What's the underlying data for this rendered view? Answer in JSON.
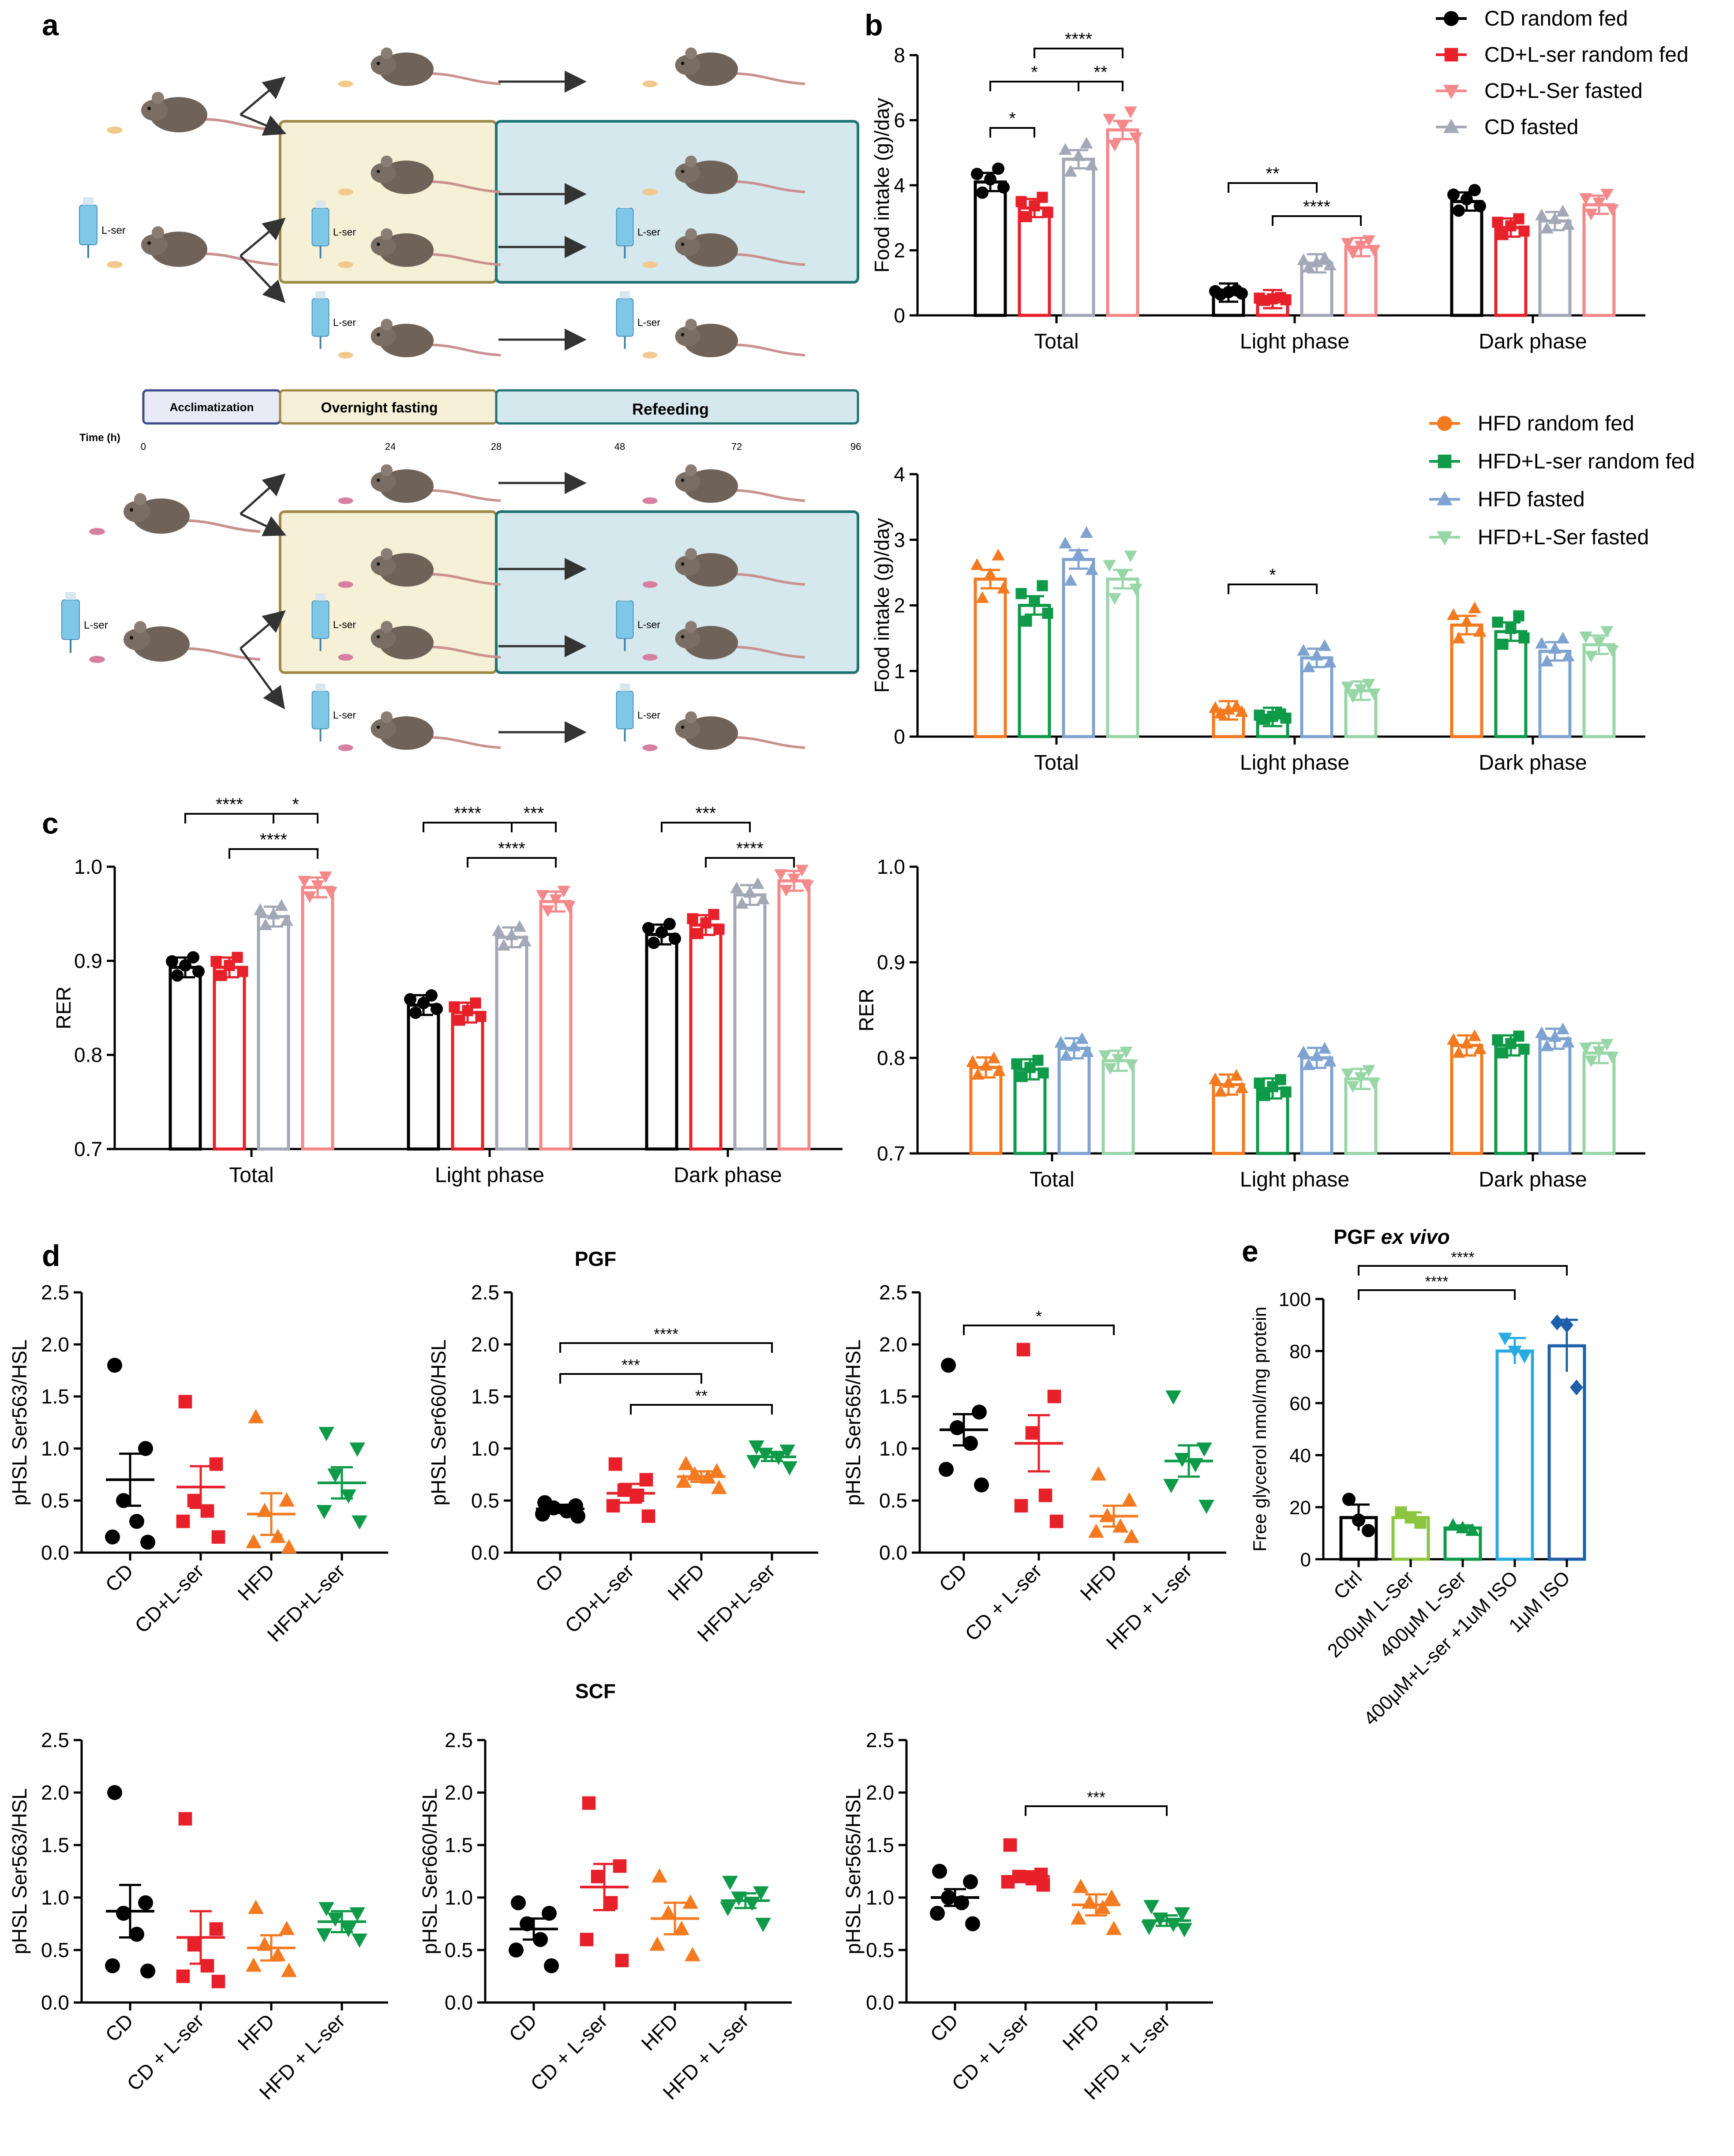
{
  "panels": {
    "a": "a",
    "b": "b",
    "c": "c",
    "d": "d",
    "e": "e"
  },
  "schematic": {
    "lser": "L-ser",
    "phases": [
      "Acclimatization",
      "Overnight fasting",
      "Refeeding"
    ],
    "time_label": "Time (h)",
    "time_ticks": [
      "0",
      "24",
      "28",
      "48",
      "72",
      "96"
    ]
  },
  "titles": {
    "pgf": "PGF",
    "scf": "SCF",
    "e_prefix": "PGF ",
    "e_italic": "ex vivo"
  },
  "colors": {
    "cd": "#000000",
    "cdlser": "#E8202A",
    "cdlserfasted": "#F4888A",
    "cdfasted": "#A3A8B7",
    "hfd": "#F47A20",
    "hfdlser": "#0E9A48",
    "hfdfasted": "#7FA3D1",
    "hfdlserfasted": "#98D6A8",
    "e_ctrl": "#000000",
    "e_200": "#8CC63F",
    "e_400": "#0E9A48",
    "e_400iso": "#29ABE2",
    "e_iso": "#1F5FA9"
  },
  "legends": {
    "b_cd": [
      "CD random fed",
      "CD+L-ser random fed",
      "CD+L-Ser fasted",
      "CD fasted"
    ],
    "b_hfd": [
      "HFD random fed",
      "HFD+L-ser random fed",
      "HFD fasted",
      "HFD+L-Ser fasted"
    ]
  },
  "chart_data": [
    {
      "id": "b_top",
      "type": "bar",
      "ylabel": "Food intake (g)/day",
      "ylim": [
        0,
        8
      ],
      "yticks": [
        "0",
        "2",
        "4",
        "6",
        "8"
      ],
      "categories": [
        "Total",
        "Light phase",
        "Dark phase"
      ],
      "series": [
        {
          "name": "CD random fed",
          "values": [
            4.1,
            0.7,
            3.5
          ]
        },
        {
          "name": "CD+L-ser random fed",
          "values": [
            3.3,
            0.5,
            2.7
          ]
        },
        {
          "name": "CD fasted",
          "values": [
            4.8,
            1.6,
            2.9
          ]
        },
        {
          "name": "CD+L-Ser fasted",
          "values": [
            5.7,
            2.1,
            3.4
          ]
        }
      ],
      "sig": [
        "*",
        "*",
        "****",
        "**",
        "**",
        "****"
      ]
    },
    {
      "id": "b_bottom",
      "type": "bar",
      "ylabel": "Food intake (g)/day",
      "ylim": [
        0,
        4
      ],
      "yticks": [
        "0",
        "1",
        "2",
        "3",
        "4"
      ],
      "categories": [
        "Total",
        "Light phase",
        "Dark phase"
      ],
      "series": [
        {
          "name": "HFD random fed",
          "values": [
            2.4,
            0.4,
            1.7
          ]
        },
        {
          "name": "HFD+L-ser random fed",
          "values": [
            2.0,
            0.3,
            1.6
          ]
        },
        {
          "name": "HFD fasted",
          "values": [
            2.7,
            1.2,
            1.3
          ]
        },
        {
          "name": "HFD+L-Ser fasted",
          "values": [
            2.4,
            0.7,
            1.4
          ]
        }
      ],
      "sig": [
        "*"
      ]
    },
    {
      "id": "c_left",
      "type": "bar",
      "ylabel": "RER",
      "ylim": [
        0.7,
        1.0
      ],
      "yticks": [
        "0.7",
        "0.8",
        "0.9",
        "1.0"
      ],
      "categories": [
        "Total",
        "Light phase",
        "Dark phase"
      ],
      "series": [
        {
          "name": "CD random fed",
          "values": [
            0.893,
            0.853,
            0.928
          ]
        },
        {
          "name": "CD+L-ser random fed",
          "values": [
            0.893,
            0.845,
            0.938
          ]
        },
        {
          "name": "CD fasted",
          "values": [
            0.947,
            0.925,
            0.97
          ]
        },
        {
          "name": "CD+L-Ser fasted",
          "values": [
            0.978,
            0.963,
            0.985
          ]
        }
      ],
      "sig": [
        "****",
        "*",
        "****",
        "****",
        "***",
        "****",
        "***",
        "****"
      ]
    },
    {
      "id": "c_right",
      "type": "bar",
      "ylabel": "RER",
      "ylim": [
        0.7,
        1.0
      ],
      "yticks": [
        "0.7",
        "0.8",
        "0.9",
        "1.0"
      ],
      "categories": [
        "Total",
        "Light phase",
        "Dark phase"
      ],
      "series": [
        {
          "name": "HFD random fed",
          "values": [
            0.79,
            0.772,
            0.813
          ]
        },
        {
          "name": "HFD+L-ser random fed",
          "values": [
            0.788,
            0.768,
            0.813
          ]
        },
        {
          "name": "HFD fasted",
          "values": [
            0.81,
            0.8,
            0.82
          ]
        },
        {
          "name": "HFD+L-Ser fasted",
          "values": [
            0.797,
            0.778,
            0.805
          ]
        }
      ],
      "sig": []
    },
    {
      "id": "d_pgf_563",
      "type": "scatter",
      "ylabel": "pHSL Ser563/HSL",
      "ylim": [
        0,
        2.5
      ],
      "yticks": [
        "0.0",
        "0.5",
        "1.0",
        "1.5",
        "2.0",
        "2.5"
      ],
      "categories": [
        "CD",
        "CD+L-ser",
        "HFD",
        "HFD+L-ser"
      ],
      "means": [
        0.7,
        0.63,
        0.37,
        0.67
      ],
      "sem": [
        0.25,
        0.2,
        0.2,
        0.15
      ],
      "points": [
        [
          1.8,
          1.0,
          0.5,
          0.3,
          0.15,
          0.1
        ],
        [
          1.45,
          0.85,
          0.5,
          0.4,
          0.3,
          0.15
        ],
        [
          1.3,
          0.5,
          0.4,
          0.15,
          0.1,
          0.05
        ],
        [
          1.15,
          1.0,
          0.75,
          0.55,
          0.4,
          0.3
        ]
      ],
      "sig": []
    },
    {
      "id": "d_pgf_660",
      "type": "scatter",
      "ylabel": "pHSL Ser660/HSL",
      "ylim": [
        0,
        2.5
      ],
      "yticks": [
        "0.0",
        "0.5",
        "1.0",
        "1.5",
        "2.0",
        "2.5"
      ],
      "categories": [
        "CD",
        "CD+L-ser",
        "HFD",
        "HFD+L-ser"
      ],
      "means": [
        0.42,
        0.57,
        0.73,
        0.92
      ],
      "sem": [
        0.04,
        0.09,
        0.05,
        0.04
      ],
      "points": [
        [
          0.48,
          0.45,
          0.43,
          0.4,
          0.37,
          0.35
        ],
        [
          0.85,
          0.7,
          0.6,
          0.55,
          0.45,
          0.35
        ],
        [
          0.85,
          0.78,
          0.75,
          0.72,
          0.68,
          0.62
        ],
        [
          1.02,
          0.98,
          0.95,
          0.92,
          0.88,
          0.82
        ]
      ],
      "sig": [
        "****",
        "***",
        "**"
      ]
    },
    {
      "id": "d_pgf_565",
      "type": "scatter",
      "ylabel": "pHSL Ser565/HSL",
      "ylim": [
        0,
        2.5
      ],
      "yticks": [
        "0.0",
        "0.5",
        "1.0",
        "1.5",
        "2.0",
        "2.5"
      ],
      "categories": [
        "CD",
        "CD + L-ser",
        "HFD",
        "HFD + L-ser"
      ],
      "means": [
        1.18,
        1.05,
        0.35,
        0.88
      ],
      "sem": [
        0.15,
        0.27,
        0.1,
        0.15
      ],
      "points": [
        [
          1.8,
          1.35,
          1.2,
          1.05,
          0.8,
          0.65
        ],
        [
          1.95,
          1.5,
          1.15,
          0.55,
          0.45,
          0.3
        ],
        [
          0.75,
          0.5,
          0.35,
          0.25,
          0.2,
          0.15
        ],
        [
          1.5,
          1.0,
          0.9,
          0.85,
          0.65,
          0.45
        ]
      ],
      "sig": [
        "*"
      ]
    },
    {
      "id": "d_scf_563",
      "type": "scatter",
      "ylabel": "pHSL Ser563/HSL",
      "ylim": [
        0,
        2.5
      ],
      "yticks": [
        "0.0",
        "0.5",
        "1.0",
        "1.5",
        "2.0",
        "2.5"
      ],
      "categories": [
        "CD",
        "CD + L-ser",
        "HFD",
        "HFD + L-ser"
      ],
      "means": [
        0.87,
        0.62,
        0.52,
        0.77
      ],
      "sem": [
        0.25,
        0.25,
        0.12,
        0.1
      ],
      "points": [
        [
          2.0,
          0.95,
          0.85,
          0.65,
          0.35,
          0.3
        ],
        [
          1.75,
          0.7,
          0.55,
          0.35,
          0.25,
          0.2
        ],
        [
          0.9,
          0.7,
          0.55,
          0.45,
          0.35,
          0.3
        ],
        [
          0.9,
          0.85,
          0.8,
          0.7,
          0.65,
          0.6
        ]
      ],
      "sig": []
    },
    {
      "id": "d_scf_660",
      "type": "scatter",
      "ylabel": "pHSL Ser660/HSL",
      "ylim": [
        0,
        2.5
      ],
      "yticks": [
        "0.0",
        "0.5",
        "1.0",
        "1.5",
        "2.0",
        "2.5"
      ],
      "categories": [
        "CD",
        "CD + L-ser",
        "HFD",
        "HFD + L-ser"
      ],
      "means": [
        0.7,
        1.1,
        0.8,
        0.97
      ],
      "sem": [
        0.1,
        0.22,
        0.15,
        0.07
      ],
      "points": [
        [
          0.95,
          0.85,
          0.75,
          0.6,
          0.5,
          0.35
        ],
        [
          1.9,
          1.3,
          1.2,
          0.95,
          0.6,
          0.4
        ],
        [
          1.2,
          0.95,
          0.85,
          0.7,
          0.55,
          0.45
        ],
        [
          1.15,
          1.05,
          1.0,
          0.95,
          0.9,
          0.75
        ]
      ],
      "sig": []
    },
    {
      "id": "d_scf_565",
      "type": "scatter",
      "ylabel": "pHSL Ser565/HSL",
      "ylim": [
        0,
        2.5
      ],
      "yticks": [
        "0.0",
        "0.5",
        "1.0",
        "1.5",
        "2.0",
        "2.5"
      ],
      "categories": [
        "CD",
        "CD + L-ser",
        "HFD",
        "HFD + L-ser"
      ],
      "means": [
        1.0,
        1.2,
        0.93,
        0.78
      ],
      "sem": [
        0.08,
        0.05,
        0.1,
        0.05
      ],
      "points": [
        [
          1.25,
          1.15,
          1.0,
          0.95,
          0.85,
          0.75
        ],
        [
          1.5,
          1.22,
          1.2,
          1.18,
          1.15,
          1.12
        ],
        [
          1.1,
          1.0,
          0.95,
          0.9,
          0.8,
          0.7
        ],
        [
          0.92,
          0.85,
          0.8,
          0.75,
          0.72,
          0.7
        ]
      ],
      "sig": [
        "***"
      ]
    },
    {
      "id": "e",
      "type": "bar",
      "ylabel": "Free glycerol nmol/mg protein",
      "ylim": [
        0,
        100
      ],
      "yticks": [
        "0",
        "20",
        "40",
        "60",
        "80",
        "100"
      ],
      "categories": [
        "Ctrl",
        "200μM L-Ser",
        "400μM L-Ser",
        "400μM+L-ser +1uM ISO",
        "1μM ISO"
      ],
      "values": [
        16,
        16,
        12,
        80,
        82
      ],
      "sem": [
        5,
        2,
        1,
        5,
        10
      ],
      "points": [
        [
          23,
          15,
          11
        ],
        [
          18,
          16,
          14
        ],
        [
          13,
          12,
          11
        ],
        [
          85,
          80,
          78
        ],
        [
          91,
          90,
          66
        ]
      ],
      "sig": [
        "****",
        "****"
      ]
    }
  ]
}
